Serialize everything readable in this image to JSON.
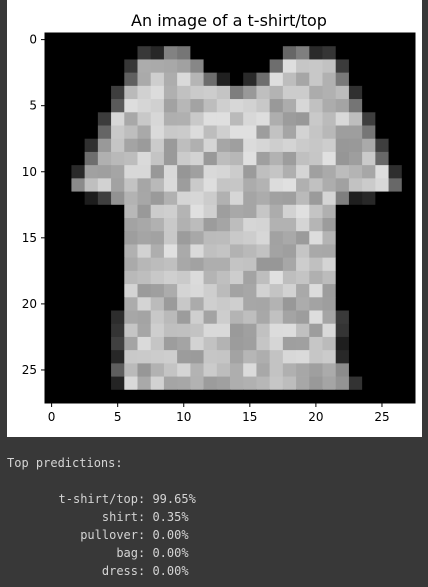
{
  "figure": {
    "title": "An image of a t-shirt/top",
    "x_ticks": [
      0,
      5,
      10,
      15,
      20,
      25
    ],
    "y_ticks": [
      0,
      5,
      10,
      15,
      20,
      25
    ],
    "image": {
      "rows": 28,
      "cols": 28,
      "colormap": "grayscale",
      "pixels": [
        "............................",
        ".......ooxx.......xxoo......",
        "......oXXXXx.....xXXXXo.....",
        "......xXXXXXxo.oxXXXXXx.....",
        ".....oXXXXXXXXxXXXXXXXXo....",
        ".....xXXXXXXXXXXXXXXXXXx....",
        "....oXXXXXXXXXXXXXXXXXXXo...",
        "....xXXXXXXXXXXXXXXXXXXXx...",
        "...oXXXXXXXXXXXXXXXXXXXXXo..",
        "...xXXXXXXXXXXXXXXXXXXXXXx..",
        "..oXXXXXXXXXXXXXXXXXXXXXXXo.",
        "..xXXXXXXXXXXXXXXXXXXXXXXXx.",
        "...ooxXXXXXXXXXXXXXXXXxoo...",
        "......XXXXXXXXXXXXXXXX......",
        "......XXXXXXXXXXXXXXXX......",
        "......XXXXXXXXXXXXXXXX......",
        "......XXXXXXXXXXXXXXXX......",
        "......XXXXXXXXXXXXXXXX......",
        "......XXXXXXXXXXXXXXXX......",
        "......XXXXXXXXXXXXXXXX......",
        "......XXXXXXXXXXXXXXXX......",
        ".....oXXXXXXXXXXXXXXXXo.....",
        ".....oXXXXXXXXXXXXXXXXo.....",
        ".....oXXXXXXXXXXXXXXXXo.....",
        ".....oXXXXXXXXXXXXXXXXo.....",
        ".....xXXXXXXXXXXXXXXXXx.....",
        ".....oXXXXXXXXXXXXXXXXxo....",
        "............................"
      ]
    }
  },
  "output": {
    "title": "Top predictions:",
    "predictions": [
      {
        "label": "t-shirt/top",
        "value": "99.65%"
      },
      {
        "label": "shirt",
        "value": "0.35%"
      },
      {
        "label": "pullover",
        "value": "0.00%"
      },
      {
        "label": "bag",
        "value": "0.00%"
      },
      {
        "label": "dress",
        "value": "0.00%"
      }
    ]
  },
  "colors": {
    "background": "#383838",
    "text": "#d4d4d4",
    "figure_bg": "#ffffff"
  }
}
